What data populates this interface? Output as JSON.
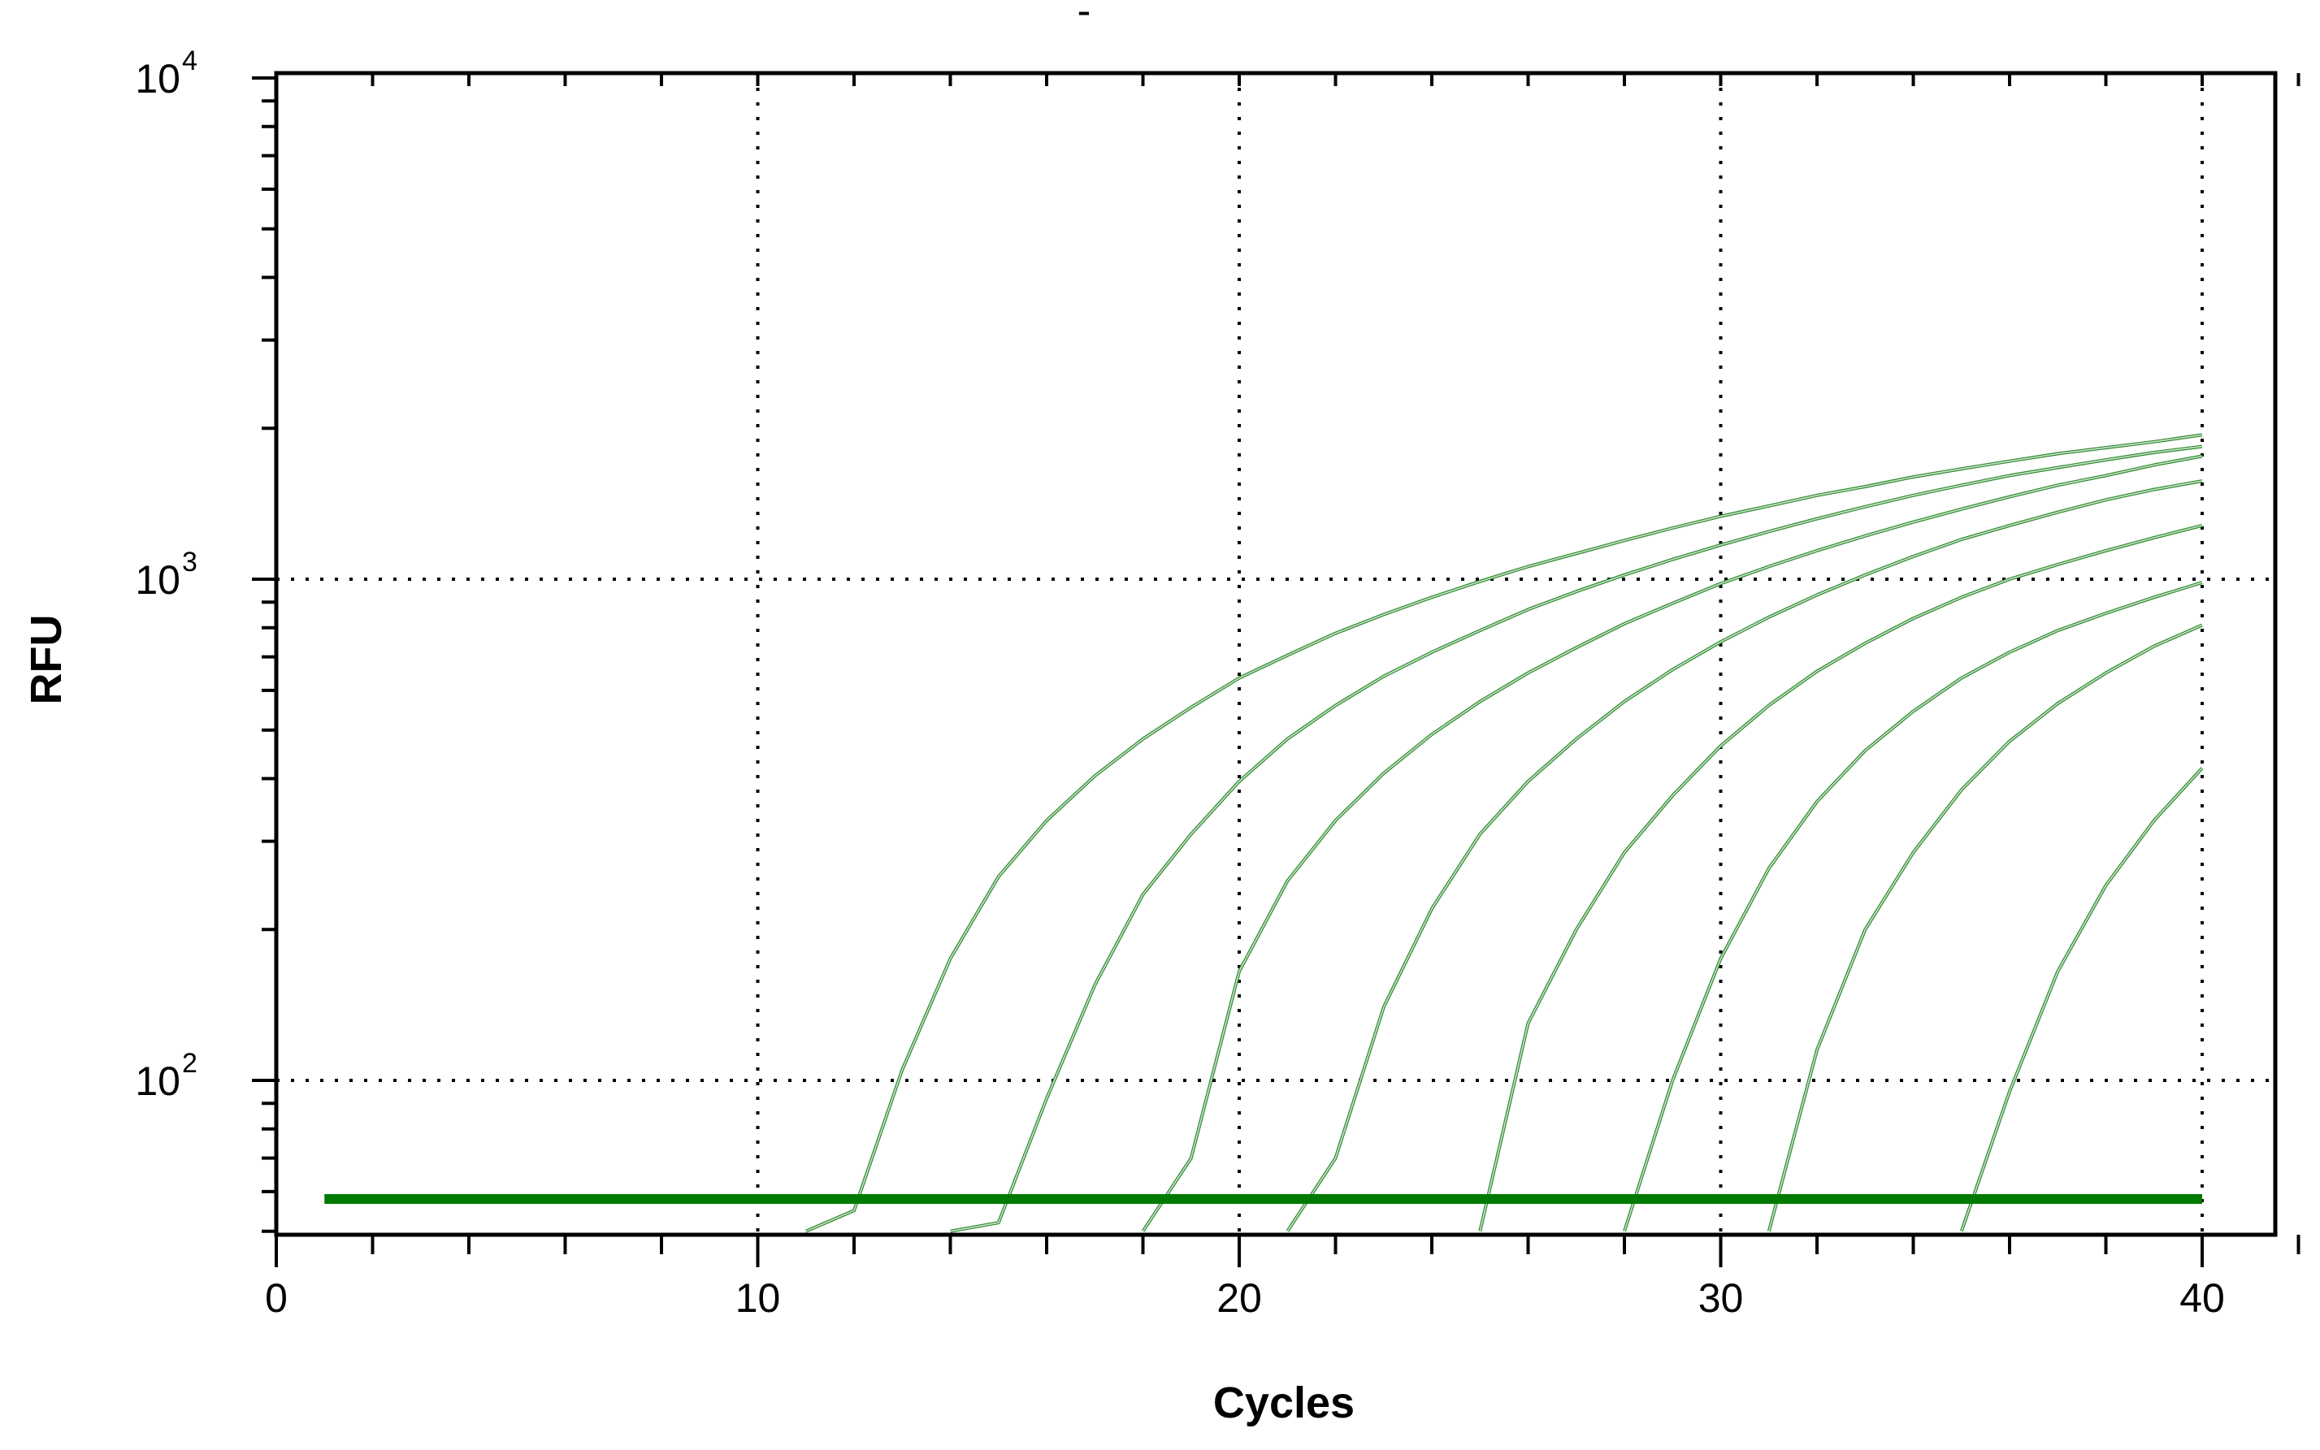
{
  "chart_data": {
    "type": "line",
    "title": "-",
    "xlabel": "Cycles",
    "ylabel": "RFU",
    "x_scale": "linear",
    "y_scale": "log",
    "xlim": [
      0,
      42
    ],
    "ylim": [
      50,
      10000
    ],
    "x_ticks": [
      0,
      10,
      20,
      30,
      40
    ],
    "y_ticks": [
      {
        "value": 100,
        "base": "10",
        "exp": "2"
      },
      {
        "value": 1000,
        "base": "10",
        "exp": "3"
      },
      {
        "value": 10000,
        "base": "10",
        "exp": "4"
      }
    ],
    "grid": true,
    "threshold": {
      "value": 58,
      "x_range": [
        1,
        40
      ]
    },
    "colors": {
      "curve": "#2e8b2e",
      "threshold": "#007a00"
    },
    "series": [
      {
        "x": [
          11,
          12,
          13,
          14,
          15,
          16,
          17,
          18,
          19,
          20,
          21,
          22,
          23,
          24,
          25,
          26,
          27,
          28,
          29,
          30,
          31,
          32,
          33,
          34,
          35,
          36,
          37,
          38,
          39,
          40
        ],
        "values": [
          49,
          55,
          105,
          175,
          255,
          330,
          405,
          480,
          555,
          635,
          705,
          780,
          850,
          920,
          990,
          1060,
          1125,
          1195,
          1265,
          1335,
          1400,
          1470,
          1530,
          1600,
          1660,
          1720,
          1780,
          1830,
          1880,
          1940
        ]
      },
      {
        "x": [
          14,
          15,
          16,
          17,
          18,
          19,
          20,
          21,
          22,
          23,
          24,
          25,
          26,
          27,
          28,
          29,
          30,
          31,
          32,
          33,
          34,
          35,
          36,
          37,
          38,
          39,
          40
        ],
        "values": [
          49,
          52,
          92,
          155,
          235,
          310,
          395,
          480,
          560,
          640,
          715,
          790,
          870,
          945,
          1020,
          1095,
          1170,
          1245,
          1320,
          1395,
          1470,
          1540,
          1610,
          1670,
          1730,
          1790,
          1840
        ]
      },
      {
        "x": [
          18,
          19,
          20,
          21,
          22,
          23,
          24,
          25,
          26,
          27,
          28,
          29,
          30,
          31,
          32,
          33,
          34,
          35,
          36,
          37,
          38,
          39,
          40
        ],
        "values": [
          48,
          70,
          165,
          250,
          330,
          410,
          490,
          570,
          650,
          730,
          815,
          895,
          980,
          1060,
          1140,
          1220,
          1300,
          1380,
          1460,
          1540,
          1610,
          1690,
          1760
        ]
      },
      {
        "x": [
          21,
          22,
          23,
          24,
          25,
          26,
          27,
          28,
          29,
          30,
          31,
          32,
          33,
          34,
          35,
          36,
          37,
          38,
          39,
          40
        ],
        "values": [
          48,
          70,
          140,
          220,
          310,
          395,
          480,
          570,
          660,
          750,
          840,
          930,
          1020,
          1110,
          1200,
          1280,
          1360,
          1440,
          1510,
          1570
        ]
      },
      {
        "x": [
          25,
          26,
          27,
          28,
          29,
          30,
          31,
          32,
          33,
          34,
          35,
          36,
          37,
          38,
          39,
          40
        ],
        "values": [
          50,
          130,
          200,
          285,
          370,
          465,
          560,
          655,
          745,
          835,
          920,
          1000,
          1070,
          1140,
          1210,
          1280
        ]
      },
      {
        "x": [
          28,
          29,
          30,
          31,
          32,
          33,
          34,
          35,
          36,
          37,
          38,
          39,
          40
        ],
        "values": [
          48,
          100,
          175,
          265,
          360,
          455,
          545,
          635,
          715,
          790,
          855,
          920,
          985
        ]
      },
      {
        "x": [
          31,
          32,
          33,
          34,
          35,
          36,
          37,
          38,
          39,
          40
        ],
        "values": [
          48,
          115,
          200,
          285,
          380,
          475,
          565,
          650,
          735,
          810
        ]
      },
      {
        "x": [
          35,
          36,
          37,
          38,
          39,
          40
        ],
        "values": [
          48,
          95,
          165,
          245,
          330,
          420
        ]
      }
    ]
  }
}
